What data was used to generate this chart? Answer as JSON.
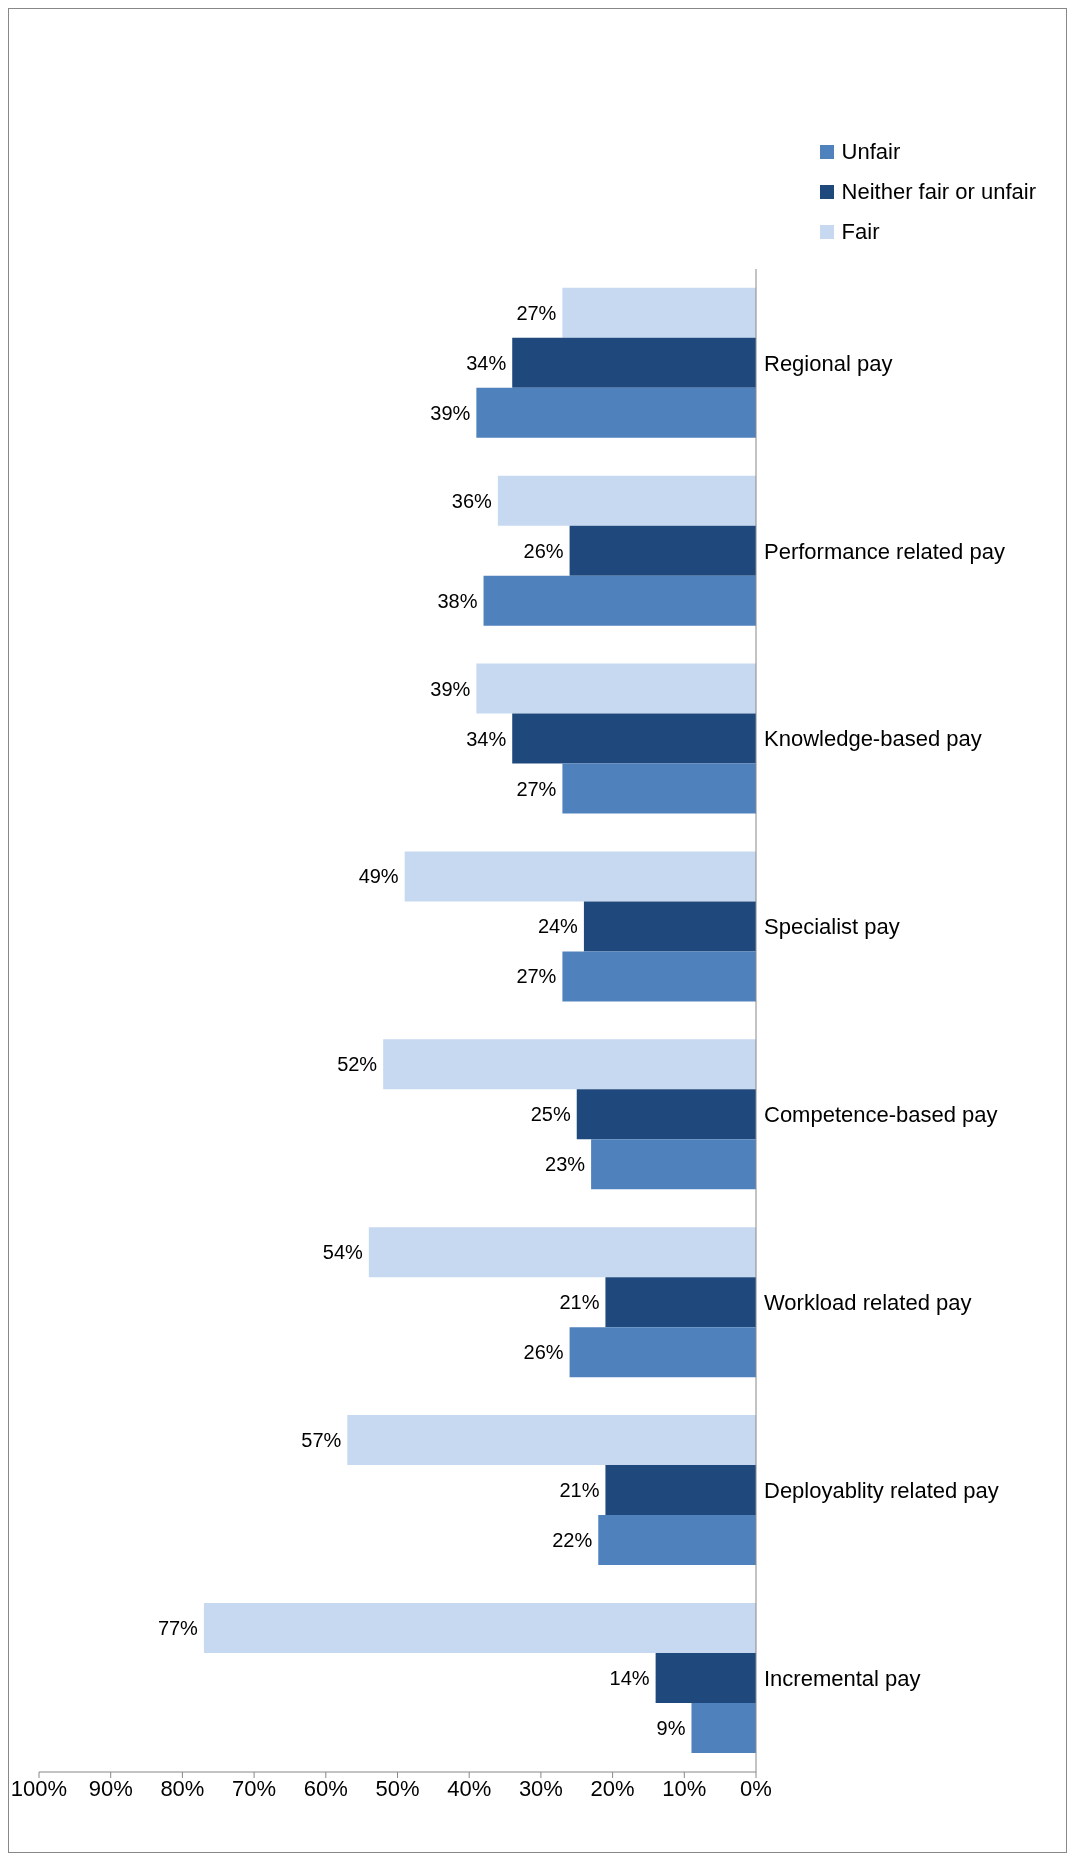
{
  "chart_data": {
    "type": "bar",
    "orientation": "horizontal",
    "categories": [
      "Regional pay",
      "Performance related pay",
      "Knowledge-based pay",
      "Specialist pay",
      "Competence-based pay",
      "Workload related pay",
      "Deployablity related pay",
      "Incremental pay"
    ],
    "series": [
      {
        "name": "Unfair",
        "color": "#4f81bd",
        "values": [
          39,
          38,
          27,
          27,
          23,
          26,
          22,
          9
        ],
        "value_labels": [
          "39%",
          "38%",
          "27%",
          "27%",
          "23%",
          "26%",
          "22%",
          "9%"
        ]
      },
      {
        "name": "Neither fair or unfair",
        "color": "#1f497d",
        "values": [
          34,
          26,
          34,
          24,
          25,
          21,
          21,
          14
        ],
        "value_labels": [
          "34%",
          "26%",
          "34%",
          "24%",
          "25%",
          "21%",
          "21%",
          "14%"
        ]
      },
      {
        "name": "Fair",
        "color": "#c6d9f0",
        "values": [
          27,
          36,
          39,
          49,
          52,
          54,
          57,
          77
        ],
        "value_labels": [
          "27%",
          "36%",
          "39%",
          "49%",
          "52%",
          "54%",
          "57%",
          "77%"
        ]
      }
    ],
    "xlim": [
      100,
      0
    ],
    "xticks": [
      {
        "value": 100,
        "label": "100%"
      },
      {
        "value": 90,
        "label": "90%"
      },
      {
        "value": 80,
        "label": "80%"
      },
      {
        "value": 70,
        "label": "70%"
      },
      {
        "value": 60,
        "label": "60%"
      },
      {
        "value": 50,
        "label": "50%"
      },
      {
        "value": 40,
        "label": "40%"
      },
      {
        "value": 30,
        "label": "30%"
      },
      {
        "value": 20,
        "label": "20%"
      },
      {
        "value": 10,
        "label": "10%"
      },
      {
        "value": 0,
        "label": "0%"
      }
    ],
    "grid": false,
    "legend": "top right"
  }
}
